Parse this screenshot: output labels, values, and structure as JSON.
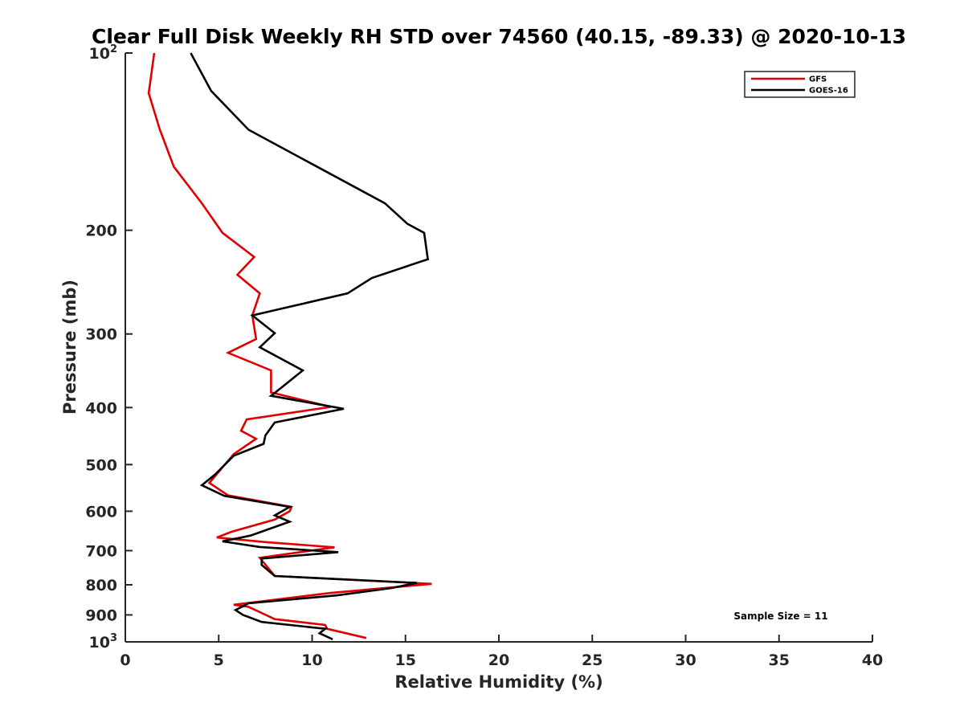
{
  "chart_data": {
    "type": "line",
    "title": "Clear Full Disk Weekly RH STD over 74560 (40.15, -89.33) @ 2020-10-13",
    "xlabel": "Relative Humidity (%)",
    "ylabel": "Pressure (mb)",
    "xlim": [
      0,
      40
    ],
    "ylim": [
      100,
      1000
    ],
    "yscale": "log",
    "y_reversed": true,
    "grid": false,
    "legend_position": "top-right",
    "x_ticks": [
      {
        "value": 0,
        "label": "0"
      },
      {
        "value": 5,
        "label": "5"
      },
      {
        "value": 10,
        "label": "10"
      },
      {
        "value": 15,
        "label": "15"
      },
      {
        "value": 20,
        "label": "20"
      },
      {
        "value": 25,
        "label": "25"
      },
      {
        "value": 30,
        "label": "30"
      },
      {
        "value": 35,
        "label": "35"
      },
      {
        "value": 40,
        "label": "40"
      }
    ],
    "y_ticks": [
      {
        "value": 100,
        "label": "10",
        "exp": "2"
      },
      {
        "value": 200,
        "label": "200"
      },
      {
        "value": 300,
        "label": "300"
      },
      {
        "value": 400,
        "label": "400"
      },
      {
        "value": 500,
        "label": "500"
      },
      {
        "value": 600,
        "label": "600"
      },
      {
        "value": 700,
        "label": "700"
      },
      {
        "value": 800,
        "label": "800"
      },
      {
        "value": 900,
        "label": "900"
      },
      {
        "value": 1000,
        "label": "10",
        "exp": "3"
      }
    ],
    "series": [
      {
        "name": "GFS",
        "color": "#e00000",
        "points": [
          [
            1.55,
            100
          ],
          [
            1.25,
            117
          ],
          [
            1.85,
            135
          ],
          [
            2.6,
            156
          ],
          [
            4.1,
            180
          ],
          [
            5.2,
            202
          ],
          [
            6.9,
            222
          ],
          [
            6.0,
            238
          ],
          [
            7.2,
            256
          ],
          [
            6.8,
            279
          ],
          [
            7.0,
            306
          ],
          [
            5.5,
            323
          ],
          [
            7.8,
            346
          ],
          [
            7.8,
            377
          ],
          [
            11.0,
            399
          ],
          [
            6.5,
            419
          ],
          [
            6.2,
            438
          ],
          [
            7.0,
            452
          ],
          [
            5.8,
            480
          ],
          [
            4.5,
            537
          ],
          [
            5.5,
            564
          ],
          [
            8.9,
            590
          ],
          [
            8.8,
            600
          ],
          [
            8.0,
            620
          ],
          [
            5.7,
            650
          ],
          [
            4.9,
            665
          ],
          [
            7.5,
            677
          ],
          [
            11.2,
            691
          ],
          [
            7.2,
            720
          ],
          [
            8.0,
            773
          ],
          [
            16.4,
            797
          ],
          [
            11.0,
            826
          ],
          [
            5.8,
            865
          ],
          [
            6.6,
            872
          ],
          [
            8.0,
            915
          ],
          [
            10.7,
            936
          ],
          [
            10.8,
            950
          ],
          [
            12.9,
            985
          ]
        ]
      },
      {
        "name": "GOES-16",
        "color": "#000000",
        "points": [
          [
            3.5,
            100
          ],
          [
            4.6,
            116
          ],
          [
            6.6,
            135
          ],
          [
            13.9,
            180
          ],
          [
            15.1,
            195
          ],
          [
            16.0,
            202
          ],
          [
            16.2,
            224
          ],
          [
            13.2,
            241
          ],
          [
            11.9,
            256
          ],
          [
            6.8,
            279
          ],
          [
            8.0,
            299
          ],
          [
            7.2,
            316
          ],
          [
            9.5,
            346
          ],
          [
            8.5,
            367
          ],
          [
            7.8,
            382
          ],
          [
            11.7,
            402
          ],
          [
            8.0,
            424
          ],
          [
            7.5,
            446
          ],
          [
            7.4,
            461
          ],
          [
            5.8,
            483
          ],
          [
            4.8,
            520
          ],
          [
            4.1,
            542
          ],
          [
            5.3,
            565
          ],
          [
            8.8,
            590
          ],
          [
            8.0,
            610
          ],
          [
            8.8,
            625
          ],
          [
            6.7,
            660
          ],
          [
            5.2,
            675
          ],
          [
            7.2,
            690
          ],
          [
            11.4,
            704
          ],
          [
            7.3,
            722
          ],
          [
            7.3,
            740
          ],
          [
            8.0,
            773
          ],
          [
            15.6,
            794
          ],
          [
            14.3,
            810
          ],
          [
            11.3,
            834
          ],
          [
            6.6,
            860
          ],
          [
            5.9,
            883
          ],
          [
            6.3,
            900
          ],
          [
            7.3,
            925
          ],
          [
            10.7,
            950
          ],
          [
            10.4,
            967
          ],
          [
            11.1,
            990
          ]
        ]
      }
    ],
    "annotation": "Sample Size = 11"
  }
}
